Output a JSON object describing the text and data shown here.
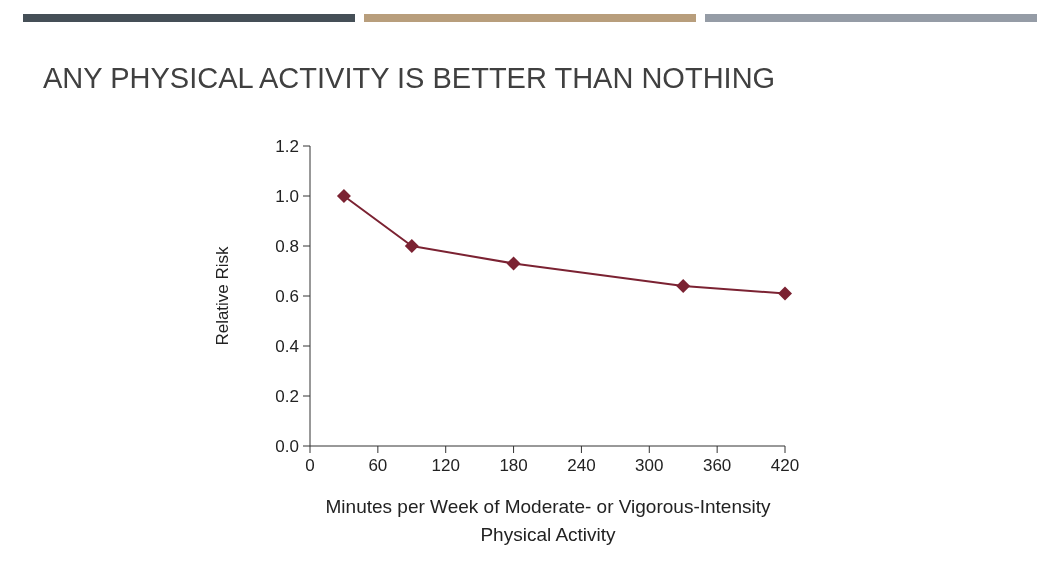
{
  "chart_data": {
    "type": "line",
    "title": "ANY PHYSICAL ACTIVITY IS BETTER THAN NOTHING",
    "xlabel": "Minutes per Week of Moderate- or Vigorous-Intensity Physical Activity",
    "ylabel": "Relative Risk",
    "x": [
      30,
      90,
      180,
      330,
      420
    ],
    "series": [
      {
        "color": "#7b2232",
        "values": [
          1.0,
          0.8,
          0.73,
          0.64,
          0.61
        ]
      }
    ],
    "xlim": [
      0,
      420
    ],
    "xticks": [
      0,
      60,
      120,
      180,
      240,
      300,
      360,
      420
    ],
    "ylim": [
      0,
      1.2
    ],
    "yticks": [
      {
        "value": 0,
        "label": "0.0"
      },
      0.2,
      0.4,
      0.6,
      0.8,
      {
        "value": 1,
        "label": "1.0"
      },
      1.2
    ],
    "grid": false,
    "legend": false,
    "marker": "diamond",
    "line_style": "solid"
  }
}
